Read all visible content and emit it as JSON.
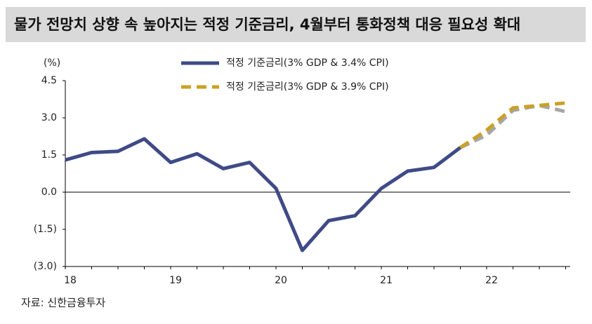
{
  "chart_data": {
    "type": "line",
    "title": "물가 전망치 상향 속 높아지는 적정 기준금리, 4월부터 통화정책 대응 필요성 확대",
    "y_unit": "(%)",
    "source": "자료: 신한금융투자",
    "categories": [
      "18",
      null,
      null,
      null,
      "19",
      null,
      null,
      null,
      "20",
      null,
      null,
      null,
      "21",
      null,
      null,
      null,
      "22",
      null,
      null,
      null
    ],
    "series": [
      {
        "name": "적정 기준금리(3% GDP & 3.4% CPI)",
        "color": "#3f4a86",
        "forecast_color": "#a6a6a6",
        "forecast_start": 15,
        "values": [
          1.3,
          1.6,
          1.65,
          2.15,
          1.2,
          1.55,
          0.95,
          1.2,
          0.15,
          -2.35,
          -1.15,
          -0.95,
          0.15,
          0.85,
          1.0,
          1.8,
          2.3,
          3.3,
          3.5,
          3.25
        ]
      },
      {
        "name": "적정 기준금리(3% GDP & 3.9% CPI)",
        "color": "#c9a227",
        "dashed": true,
        "values": [
          null,
          null,
          null,
          null,
          null,
          null,
          null,
          null,
          null,
          null,
          null,
          null,
          null,
          null,
          null,
          1.8,
          2.5,
          3.4,
          3.5,
          3.6
        ]
      }
    ],
    "ylim": [
      -3,
      4.5
    ],
    "yticks": [
      4.5,
      {
        "value": 3,
        "label": "3.0"
      },
      1.5,
      {
        "value": 0,
        "label": "0.0"
      },
      {
        "value": -1.5,
        "label": "(1.5)"
      },
      {
        "value": -3,
        "label": "(3.0)"
      }
    ]
  }
}
